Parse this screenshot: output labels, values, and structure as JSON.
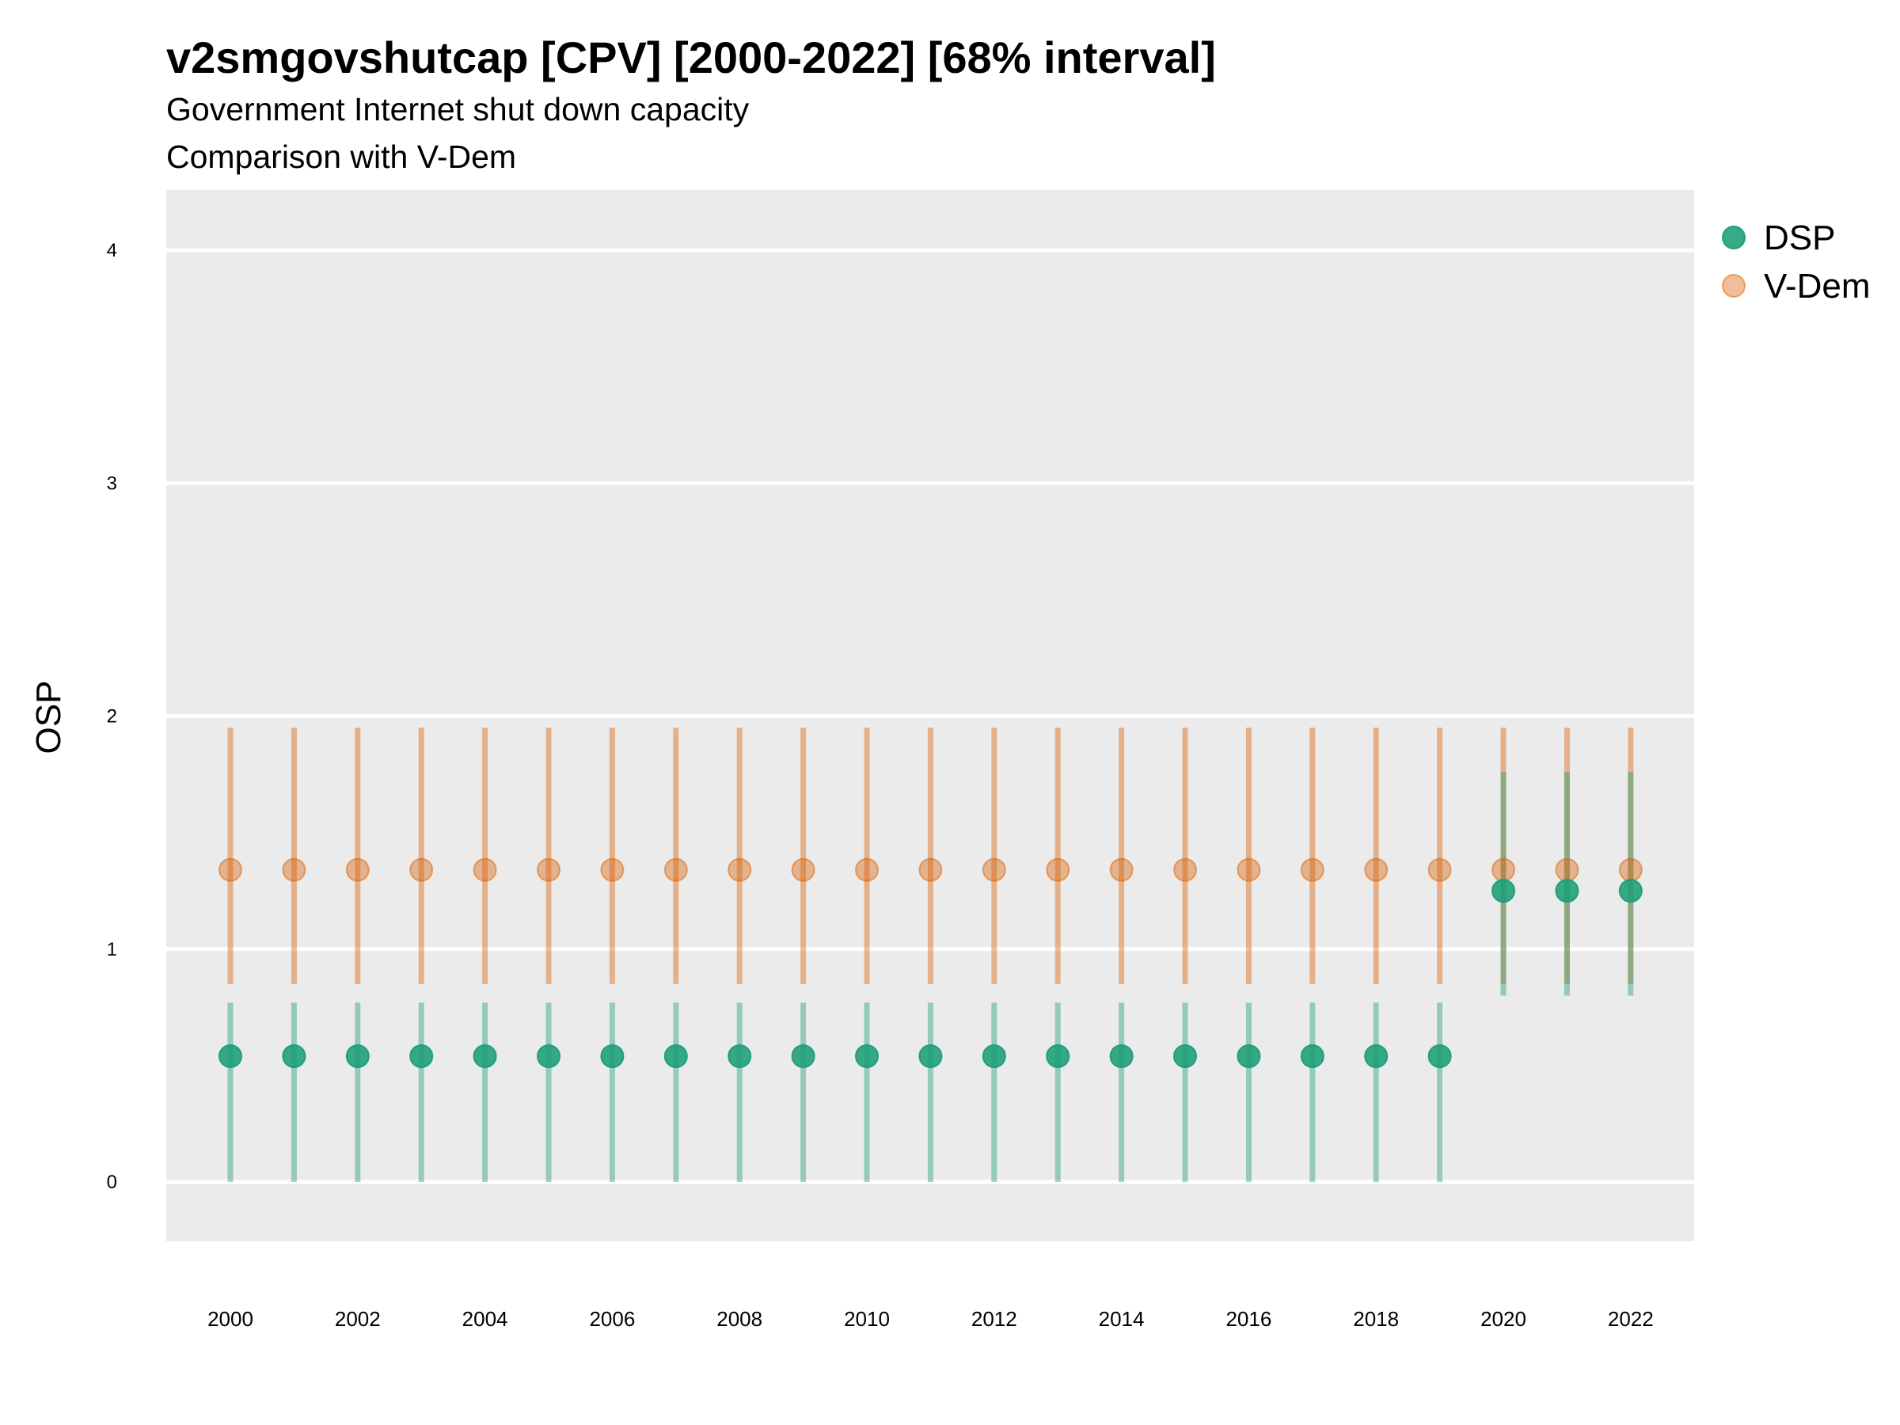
{
  "chart_data": {
    "type": "scatter",
    "title": "v2smgovshutcap [CPV] [2000-2022] [68% interval]",
    "subtitle": "Government Internet shut down capacity",
    "caption": "Comparison with V-Dem",
    "xlabel": "",
    "ylabel": "OSP",
    "ylim": [
      -0.25,
      4.25
    ],
    "yticks": [
      0,
      1,
      2,
      3,
      4
    ],
    "xlim": [
      1999.0,
      2023.0
    ],
    "xticks": [
      2000,
      2002,
      2004,
      2006,
      2008,
      2010,
      2012,
      2014,
      2016,
      2018,
      2020,
      2022
    ],
    "grid": true,
    "legend_position": "right",
    "series": [
      {
        "name": "DSP",
        "color": "#1b9e77",
        "x": [
          2000,
          2001,
          2002,
          2003,
          2004,
          2005,
          2006,
          2007,
          2008,
          2009,
          2010,
          2011,
          2012,
          2013,
          2014,
          2015,
          2016,
          2017,
          2018,
          2019,
          2020,
          2021,
          2022
        ],
        "y": [
          0.54,
          0.54,
          0.54,
          0.54,
          0.54,
          0.54,
          0.54,
          0.54,
          0.54,
          0.54,
          0.54,
          0.54,
          0.54,
          0.54,
          0.54,
          0.54,
          0.54,
          0.54,
          0.54,
          0.54,
          1.25,
          1.25,
          1.25
        ],
        "lower": [
          0.0,
          0.0,
          0.0,
          0.0,
          0.0,
          0.0,
          0.0,
          0.0,
          0.0,
          0.0,
          0.0,
          0.0,
          0.0,
          0.0,
          0.0,
          0.0,
          0.0,
          0.0,
          0.0,
          0.0,
          0.8,
          0.8,
          0.8
        ],
        "upper": [
          0.77,
          0.77,
          0.77,
          0.77,
          0.77,
          0.77,
          0.77,
          0.77,
          0.77,
          0.77,
          0.77,
          0.77,
          0.77,
          0.77,
          0.77,
          0.77,
          0.77,
          0.77,
          0.77,
          0.77,
          1.76,
          1.76,
          1.76
        ]
      },
      {
        "name": "V-Dem",
        "color": "#d95f02",
        "x": [
          2000,
          2001,
          2002,
          2003,
          2004,
          2005,
          2006,
          2007,
          2008,
          2009,
          2010,
          2011,
          2012,
          2013,
          2014,
          2015,
          2016,
          2017,
          2018,
          2019,
          2020,
          2021,
          2022
        ],
        "y": [
          1.34,
          1.34,
          1.34,
          1.34,
          1.34,
          1.34,
          1.34,
          1.34,
          1.34,
          1.34,
          1.34,
          1.34,
          1.34,
          1.34,
          1.34,
          1.34,
          1.34,
          1.34,
          1.34,
          1.34,
          1.34,
          1.34,
          1.34
        ],
        "lower": [
          0.85,
          0.85,
          0.85,
          0.85,
          0.85,
          0.85,
          0.85,
          0.85,
          0.85,
          0.85,
          0.85,
          0.85,
          0.85,
          0.85,
          0.85,
          0.85,
          0.85,
          0.85,
          0.85,
          0.85,
          0.85,
          0.85,
          0.85
        ],
        "upper": [
          1.95,
          1.95,
          1.95,
          1.95,
          1.95,
          1.95,
          1.95,
          1.95,
          1.95,
          1.95,
          1.95,
          1.95,
          1.95,
          1.95,
          1.95,
          1.95,
          1.95,
          1.95,
          1.95,
          1.95,
          1.95,
          1.95,
          1.95
        ]
      }
    ]
  }
}
